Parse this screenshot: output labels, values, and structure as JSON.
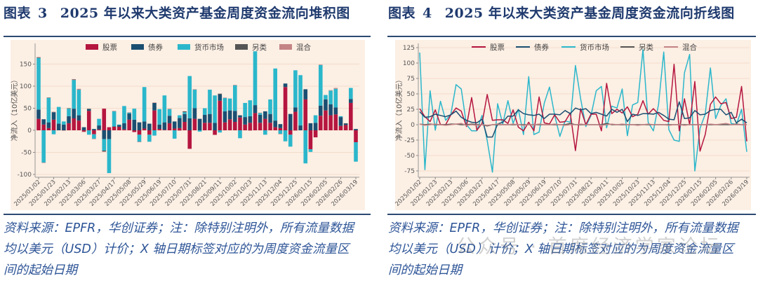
{
  "left_panel": {
    "figure_label": "图表",
    "figure_number": "3",
    "title": "2025 年以来大类资产基金周度资金流向堆积图",
    "footnote_lines": [
      "资料来源：EPFR，华创证券；注：除特别注明外，所有流量数据",
      "均以美元（USD）计价；X 轴日期标签对应的为周度资金流量区",
      "间的起始日期"
    ]
  },
  "right_panel": {
    "figure_label": "图表",
    "figure_number": "4",
    "title": "2025 年以来大类资产基金周度资金流向折线图",
    "footnote_lines": [
      "资料来源：EPFR，华创证券；注：除特别注明外，所有流量数据",
      "均以美元（USD）计价；X 轴日期标签对应的为周度资金流量区",
      "间的起始日期"
    ]
  },
  "watermark": "公众号 · 首席经济学家论坛",
  "colors": {
    "equity": "#b5163f",
    "bond": "#1b4f72",
    "money_market": "#2bb7cb",
    "alternative": "#555555",
    "mixed": "#c48486",
    "plot_bg": "#fcefe4"
  },
  "chart_data": [
    {
      "type": "bar",
      "stacked": true,
      "title": "2025 年以来大类资产基金周度资金流向堆积图",
      "xlabel": "",
      "ylabel": "净流入（10亿美元）",
      "ylim": [
        -105,
        185
      ],
      "yticks": [
        -100,
        -50,
        0,
        50,
        100,
        150
      ],
      "x_tick_labels": [
        "2025/01/02",
        "2025/01/23",
        "2025/02/13",
        "2025/03/06",
        "2025/03/27",
        "2025/04/17",
        "2025/05/08",
        "2025/05/29",
        "2025/06/19",
        "2025/07/10",
        "2025/07/31",
        "2025/08/21",
        "2025/09/11",
        "2025/10/02",
        "2025/10/23",
        "2025/11/13",
        "2025/12/04",
        "2025/12/25",
        "2026/01/15",
        "2026/02/05",
        "2026/02/26",
        "2026/03/19"
      ],
      "x_tick_every_n_weeks": 3,
      "legend_position": "top-center",
      "grid": true,
      "series": [
        {
          "name": "股票",
          "color_key": "equity",
          "values": [
            26,
            13,
            5,
            24,
            0,
            0,
            16,
            27,
            22,
            -3,
            44,
            -9,
            2,
            49,
            7,
            8,
            8,
            2,
            24,
            -4,
            -10,
            4,
            -10,
            45,
            3,
            1,
            16,
            4,
            5,
            19,
            -42,
            26,
            0,
            17,
            17,
            -10,
            67,
            18,
            25,
            19,
            29,
            13,
            17,
            39,
            17,
            26,
            17,
            7,
            5,
            98,
            -10,
            42,
            0,
            70,
            -43,
            -16,
            33,
            45,
            34,
            36,
            10,
            12,
            62,
            -27
          ]
        },
        {
          "name": "债券",
          "color_key": "bond",
          "values": [
            21,
            12,
            13,
            17,
            15,
            13,
            16,
            22,
            12,
            7,
            4,
            3,
            9,
            -20,
            -20,
            1,
            4,
            14,
            14,
            24,
            18,
            16,
            15,
            17,
            10,
            17,
            17,
            16,
            23,
            18,
            27,
            24,
            26,
            18,
            20,
            17,
            14,
            25,
            20,
            25,
            5,
            17,
            15,
            18,
            18,
            17,
            20,
            15,
            9,
            8,
            37,
            10,
            11,
            23,
            16,
            17,
            23,
            25,
            25,
            16,
            20,
            3,
            9,
            3
          ]
        },
        {
          "name": "货币市场",
          "color_key": "money_market",
          "values": [
            117,
            -73,
            55,
            -9,
            38,
            7,
            17,
            65,
            58,
            0,
            -10,
            -10,
            15,
            -26,
            -77,
            34,
            1,
            39,
            2,
            25,
            -16,
            78,
            -16,
            -12,
            35,
            61,
            15,
            -19,
            6,
            4,
            96,
            42,
            -3,
            15,
            55,
            62,
            -5,
            30,
            27,
            58,
            -18,
            32,
            36,
            122,
            4,
            -10,
            33,
            118,
            -8,
            -25,
            -27,
            84,
            114,
            -75,
            -6,
            17,
            92,
            10,
            31,
            42,
            2,
            0,
            25,
            -44
          ]
        },
        {
          "name": "另类",
          "color_key": "alternative",
          "values": [
            1,
            0,
            1,
            0,
            0,
            0,
            1,
            1,
            0,
            0,
            1,
            0,
            0,
            -2,
            0,
            0,
            0,
            0,
            0,
            0,
            0,
            0,
            0,
            0,
            0,
            0,
            0,
            0,
            0,
            2,
            0,
            0,
            0,
            0,
            0,
            0,
            2,
            0,
            0,
            0,
            0,
            0,
            0,
            0,
            0,
            0,
            0,
            0,
            0,
            0,
            0,
            0,
            0,
            0,
            0,
            0,
            0,
            0,
            0,
            0,
            0,
            1,
            0,
            0
          ]
        },
        {
          "name": "混合",
          "color_key": "mixed",
          "values": [
            1,
            -1,
            0,
            1,
            0,
            -1,
            0,
            1,
            2,
            -1,
            0,
            -1,
            0,
            -1,
            0,
            1,
            0,
            0,
            1,
            0,
            -1,
            0,
            0,
            1,
            0,
            0,
            1,
            0,
            -1,
            0,
            0,
            1,
            0,
            0,
            0,
            -1,
            0,
            1,
            0,
            1,
            0,
            0,
            -1,
            0,
            1,
            0,
            0,
            0,
            -1,
            0,
            0,
            -1,
            0,
            0,
            0,
            0,
            1,
            0,
            1,
            2,
            0,
            0,
            0,
            0
          ]
        }
      ]
    },
    {
      "type": "line",
      "title": "2025 年以来大类资产基金周度资金流向折线图",
      "xlabel": "",
      "ylabel": "净流入（10亿美元）",
      "ylim": [
        -85,
        128
      ],
      "yticks": [
        -75,
        -50,
        -25,
        0,
        25,
        50,
        75,
        100,
        125
      ],
      "x_tick_labels": [
        "2025/01/02",
        "2025/01/23",
        "2025/02/13",
        "2025/03/06",
        "2025/03/27",
        "2025/04/17",
        "2025/05/08",
        "2025/05/29",
        "2025/06/19",
        "2025/07/10",
        "2025/07/31",
        "2025/08/21",
        "2025/09/11",
        "2025/10/02",
        "2025/10/23",
        "2025/11/13",
        "2025/12/04",
        "2025/12/25",
        "2026/01/15",
        "2026/02/05",
        "2026/02/26",
        "2026/03/19"
      ],
      "x_tick_every_n_weeks": 3,
      "legend_position": "top-center",
      "grid": true,
      "series": [
        {
          "name": "股票",
          "color_key": "equity",
          "values": [
            26,
            13,
            5,
            24,
            0,
            0,
            16,
            27,
            22,
            -3,
            44,
            -9,
            2,
            49,
            7,
            8,
            8,
            2,
            24,
            -4,
            -10,
            4,
            -10,
            45,
            3,
            1,
            16,
            4,
            5,
            19,
            -42,
            26,
            0,
            17,
            17,
            -10,
            67,
            18,
            25,
            19,
            29,
            13,
            17,
            39,
            17,
            26,
            17,
            7,
            5,
            98,
            -10,
            42,
            0,
            70,
            -43,
            -16,
            33,
            45,
            34,
            36,
            10,
            12,
            62,
            -27
          ]
        },
        {
          "name": "债券",
          "color_key": "bond",
          "values": [
            21,
            12,
            13,
            17,
            15,
            13,
            16,
            22,
            12,
            7,
            4,
            3,
            9,
            -20,
            -20,
            1,
            4,
            14,
            14,
            24,
            18,
            16,
            15,
            17,
            10,
            17,
            17,
            16,
            23,
            18,
            27,
            24,
            26,
            18,
            20,
            17,
            14,
            25,
            20,
            25,
            5,
            17,
            15,
            18,
            18,
            17,
            20,
            15,
            9,
            8,
            37,
            10,
            11,
            23,
            16,
            17,
            23,
            25,
            25,
            16,
            20,
            3,
            9,
            3
          ]
        },
        {
          "name": "货币市场",
          "color_key": "money_market",
          "values": [
            117,
            -73,
            55,
            -9,
            38,
            7,
            17,
            65,
            58,
            0,
            -10,
            -10,
            15,
            -26,
            -77,
            34,
            1,
            39,
            2,
            25,
            -16,
            78,
            -16,
            -12,
            35,
            61,
            15,
            -19,
            6,
            4,
            96,
            42,
            -3,
            15,
            55,
            62,
            -5,
            30,
            27,
            58,
            -18,
            32,
            36,
            122,
            4,
            -10,
            33,
            118,
            -8,
            -25,
            -27,
            84,
            114,
            -75,
            -6,
            17,
            92,
            10,
            31,
            42,
            2,
            0,
            25,
            -44
          ]
        },
        {
          "name": "另类",
          "color_key": "alternative",
          "values": [
            1,
            0,
            1,
            0,
            0,
            0,
            1,
            1,
            0,
            0,
            1,
            0,
            0,
            -2,
            0,
            0,
            0,
            0,
            0,
            0,
            0,
            0,
            0,
            0,
            0,
            0,
            0,
            0,
            0,
            2,
            0,
            0,
            0,
            0,
            0,
            0,
            2,
            0,
            0,
            0,
            0,
            0,
            0,
            0,
            0,
            0,
            0,
            0,
            0,
            0,
            0,
            0,
            0,
            0,
            0,
            0,
            0,
            0,
            0,
            0,
            0,
            1,
            0,
            0
          ]
        },
        {
          "name": "混合",
          "color_key": "mixed",
          "values": [
            1,
            -1,
            0,
            1,
            0,
            -1,
            0,
            1,
            2,
            -1,
            0,
            -1,
            0,
            -1,
            0,
            1,
            0,
            0,
            1,
            0,
            -1,
            0,
            0,
            1,
            0,
            0,
            1,
            0,
            -1,
            0,
            0,
            1,
            0,
            0,
            0,
            -1,
            0,
            1,
            0,
            1,
            0,
            0,
            -1,
            0,
            1,
            0,
            0,
            0,
            -1,
            0,
            0,
            -1,
            0,
            0,
            0,
            0,
            1,
            0,
            1,
            2,
            0,
            0,
            0,
            0
          ]
        }
      ]
    }
  ]
}
